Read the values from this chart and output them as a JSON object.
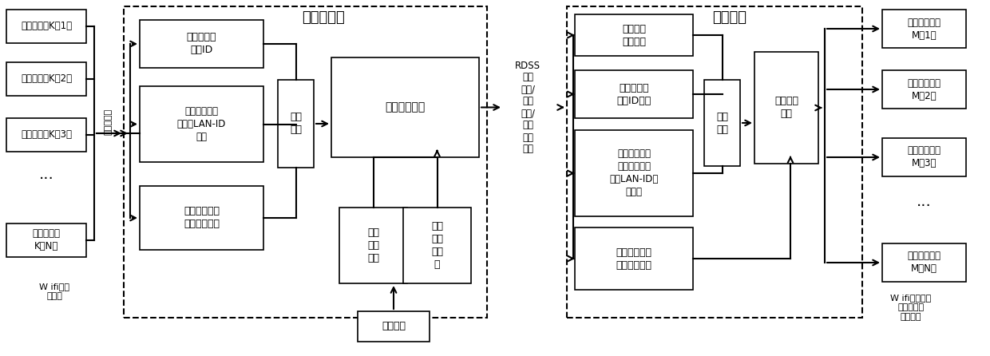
{
  "bg_color": "#ffffff",
  "src_labels": [
    "源通信终端K（1）",
    "源通信终端K（2）",
    "源通信终端K（3）",
    "源通信终端\nK（N）"
  ],
  "dst_labels": [
    "目标通信终端\nM（1）",
    "目标通信终端\nM（2）",
    "目标通信终端\nM（3）",
    "目标通信终端\nM（N）"
  ],
  "label_multiuser": "多用户接入",
  "label_wifi_bt": "W ifi、蓝\n牙链路",
  "label_rdss": "RDSS\n卫星\n链路/\n有线\n链路/\n移动\n通信\n链路",
  "label_wifi_fiber": "W ifi、移动通\n信、光纤等\n各种链路",
  "beidou_title": "北斗微基站",
  "control_title": "控制中心",
  "box_beidou_id": "北斗微基站\n北斗ID",
  "box_lan_alloc": "微基站接入身\n份标识LAN-ID\n分配",
  "box_dst_extract1": "目标通信终端\n标识信息提取",
  "box_info_pack1": "信息\n组包",
  "box_transmission1": "传输链路选择",
  "box_routing_strategy": "路由\n策略\n设置",
  "box_routing_adaptive": "路由\n自适\n应调\n整",
  "box_manual": "人工设置",
  "box_cc_label": "控制中心\n标识信息",
  "box_beidou_id_extract": "北斗微基站\n北斗ID提取",
  "box_lan_extract": "源通信终端微\n基站接入身份\n标识LAN-ID信\n息提取",
  "box_dst_extract2": "目标通信终端\n标识信息提取",
  "box_info_pack2": "信息\n组包",
  "box_transmission2": "传输链路\n选择"
}
